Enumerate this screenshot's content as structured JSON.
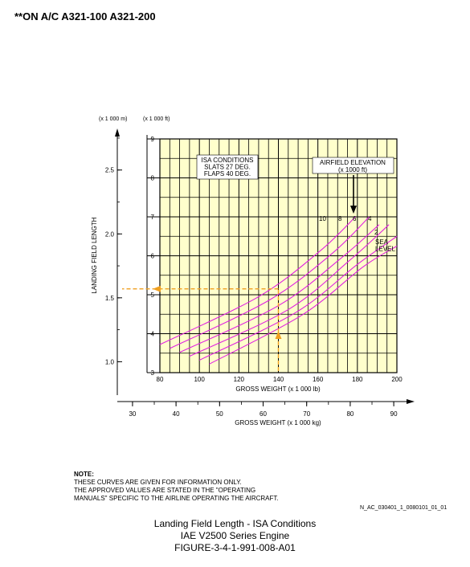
{
  "header": {
    "title": "**ON A/C A321-100 A321-200"
  },
  "chart_data": {
    "type": "line",
    "xlabel": "GROSS WEIGHT (x 1 000 lb)",
    "x2label": "GROSS WEIGHT (x 1 000 kg)",
    "ylabel": "LANDING FIELD LENGTH",
    "yunit_left": "(x 1 000 m)",
    "yunit_right": "(x 1 000 ft)",
    "xlim": [
      80,
      200
    ],
    "ylim": [
      3,
      9
    ],
    "x_ticks": [
      "80",
      "100",
      "120",
      "140",
      "160",
      "180",
      "200"
    ],
    "x2_ticks": [
      "30",
      "40",
      "50",
      "60",
      "70",
      "80",
      "90"
    ],
    "y_ticks_ft": [
      "3",
      "4",
      "5",
      "6",
      "7",
      "8",
      "9"
    ],
    "y_ticks_m": [
      "1.0",
      "1.5",
      "2.0",
      "2.5"
    ],
    "conditions": "ISA CONDITIONS\nSLATS 27 DEG.\nFLAPS 40 DEG.",
    "legend_title": "AIRFIELD ELEVATION\n(x 1000 ft)",
    "series": [
      {
        "name": "10",
        "points": [
          [
            80,
            3.72
          ],
          [
            130,
            4.95
          ],
          [
            161,
            6.12
          ],
          [
            179,
            7.0
          ]
        ]
      },
      {
        "name": "8",
        "points": [
          [
            85,
            3.62
          ],
          [
            135,
            4.85
          ],
          [
            167,
            6.05
          ],
          [
            186,
            7.0
          ]
        ]
      },
      {
        "name": "6",
        "points": [
          [
            90,
            3.52
          ],
          [
            140,
            4.72
          ],
          [
            172,
            5.95
          ],
          [
            191,
            6.8
          ]
        ]
      },
      {
        "name": "4",
        "points": [
          [
            95,
            3.42
          ],
          [
            145,
            4.62
          ],
          [
            176,
            5.88
          ],
          [
            196,
            6.8
          ]
        ]
      },
      {
        "name": "2",
        "points": [
          [
            100,
            3.32
          ],
          [
            149,
            4.55
          ],
          [
            180,
            5.78
          ],
          [
            200,
            6.5
          ]
        ]
      },
      {
        "name": "SEA\nLEVEL",
        "points": [
          [
            105,
            3.22
          ],
          [
            152,
            4.48
          ],
          [
            183,
            5.72
          ],
          [
            200,
            6.25
          ]
        ]
      }
    ],
    "example": {
      "x": 140,
      "y": 5.15
    }
  },
  "note": {
    "title": "NOTE:",
    "lines": [
      "THESE CURVES ARE GIVEN FOR INFORMATION ONLY.",
      "THE APPROVED VALUES ARE STATED IN THE \"OPERATING",
      "MANUALS\" SPECIFIC TO THE AIRLINE OPERATING THE AIRCRAFT."
    ]
  },
  "figure_id": "N_AC_030401_1_0080101_01_01",
  "caption": {
    "line1": "Landing Field Length - ISA Conditions",
    "line2": "IAE V2500 Series Engine",
    "line3": "FIGURE-3-4-1-991-008-A01"
  },
  "colors": {
    "plot_bg": "#ffffcc",
    "curve": "#e020e0",
    "example": "#f0a020"
  }
}
